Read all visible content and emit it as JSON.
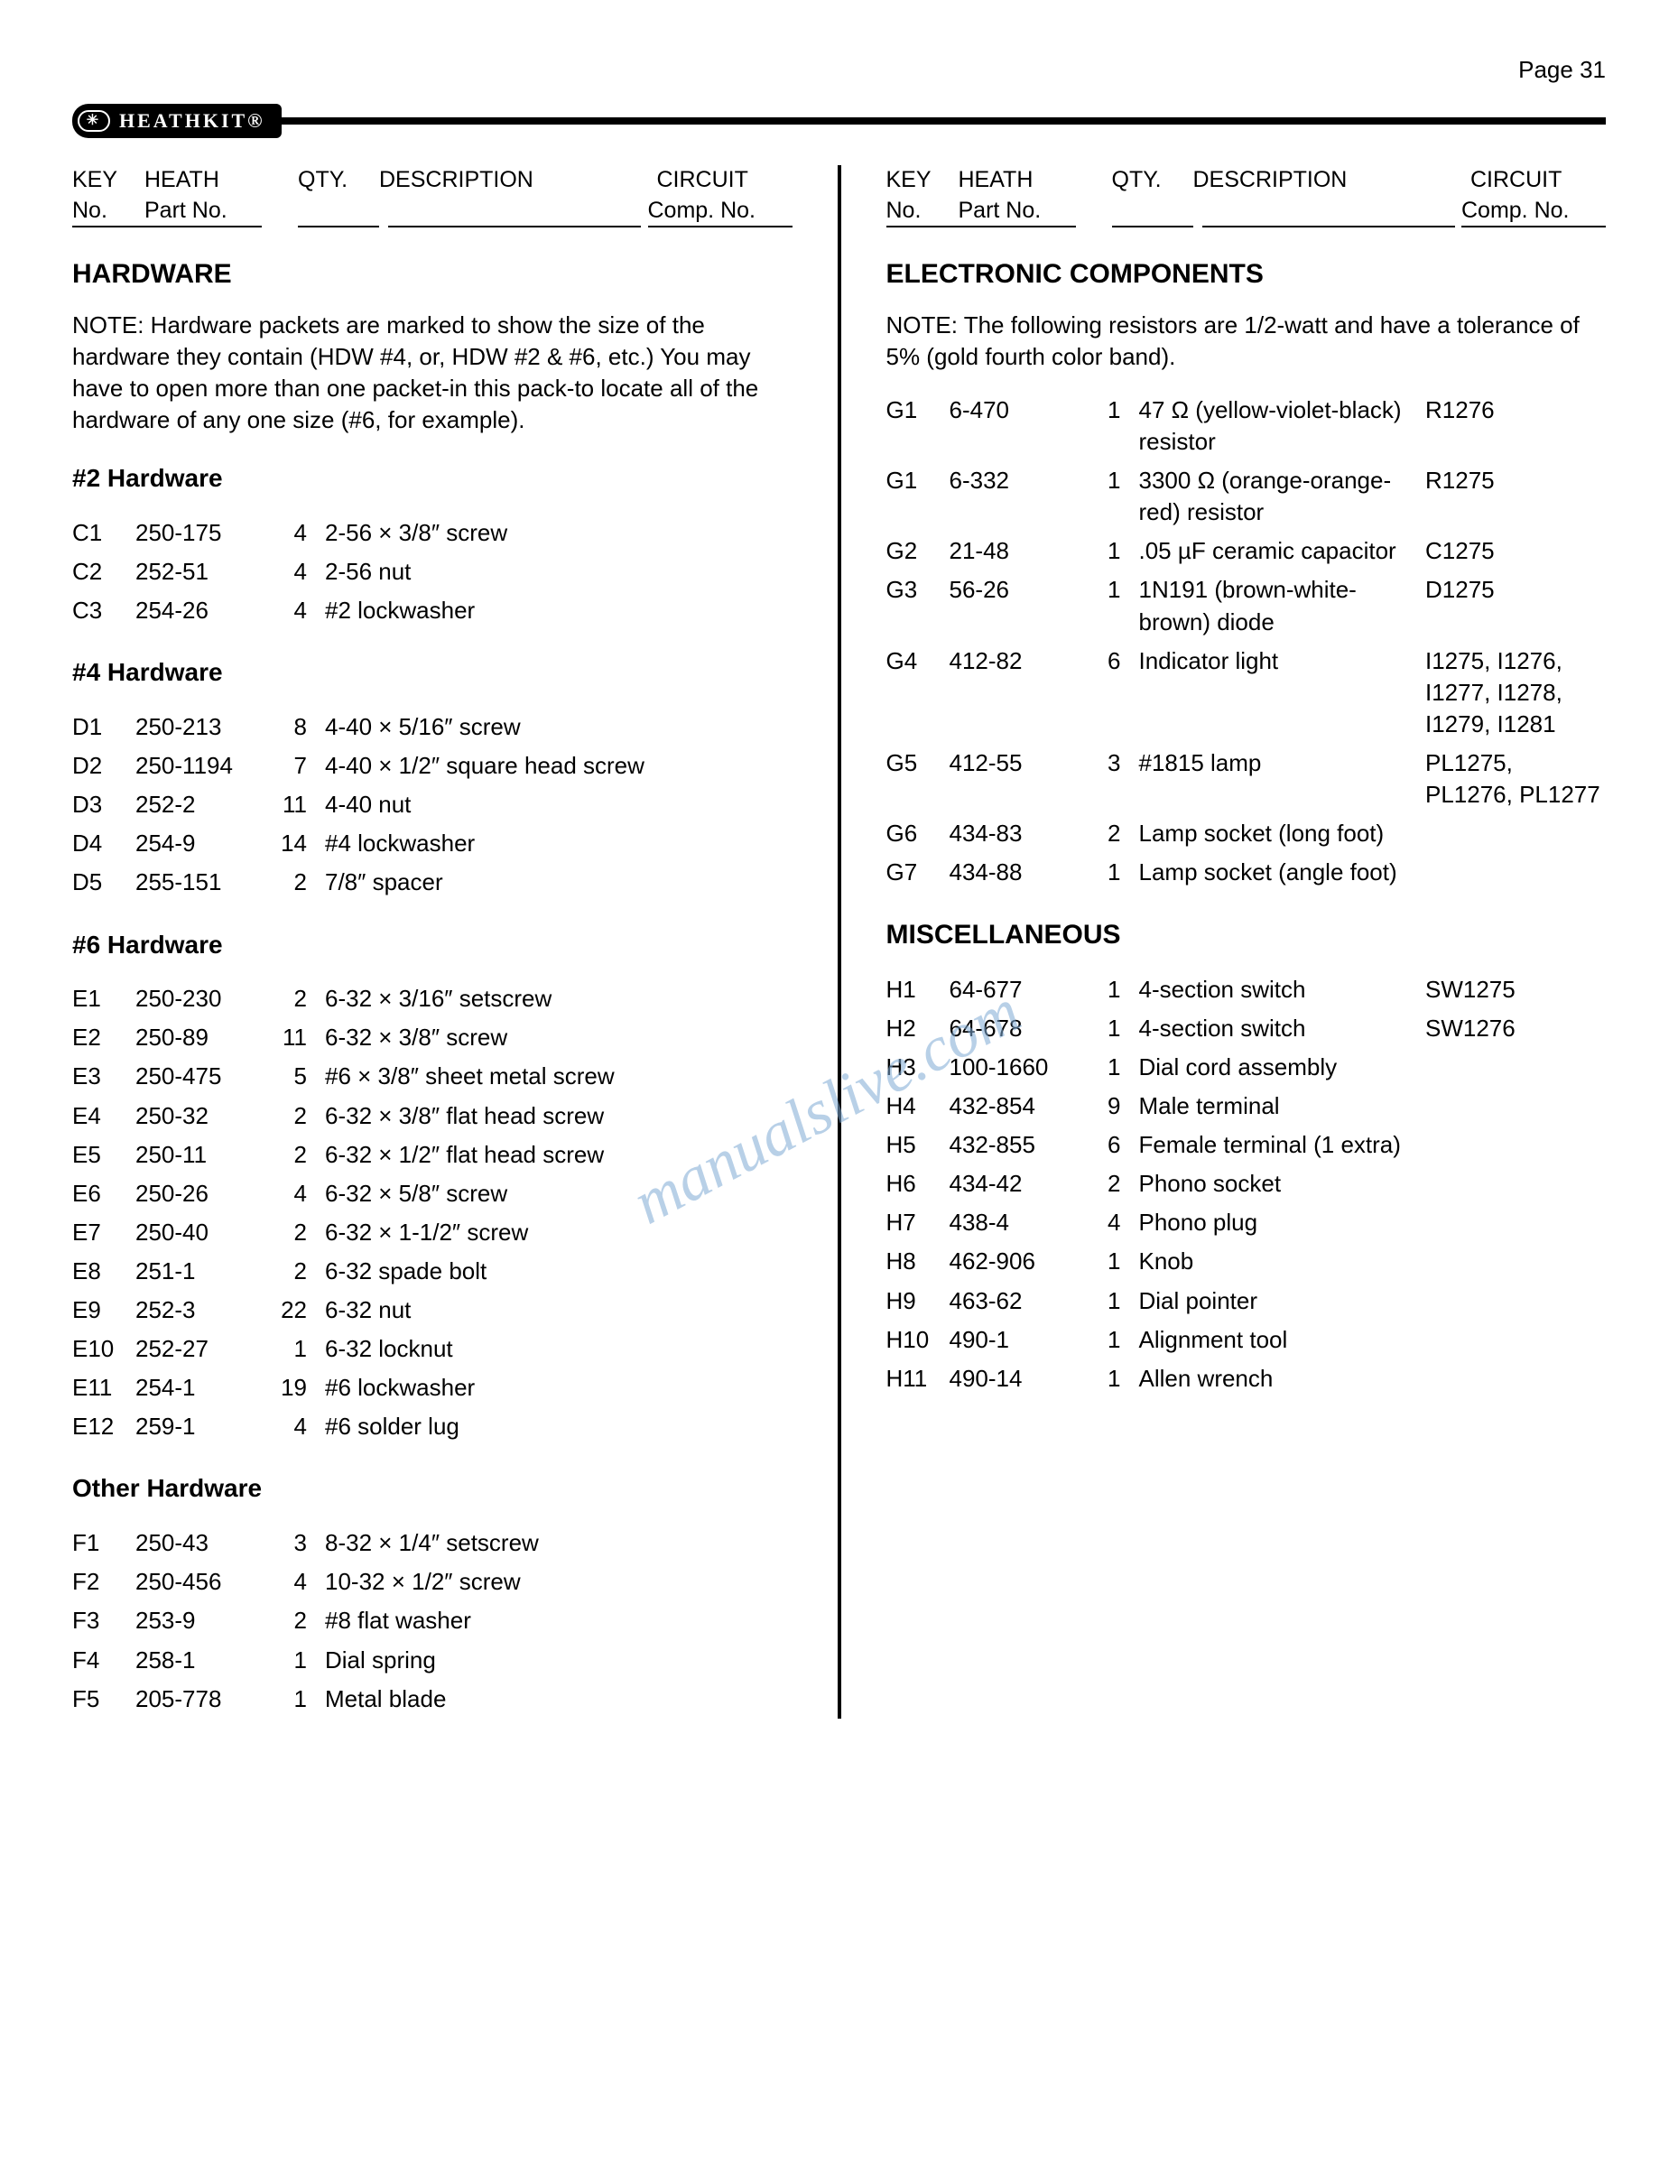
{
  "page_label": "Page 31",
  "logo_text": "HEATHKIT®",
  "watermark": "manualslive.com",
  "header": {
    "l1_key": "KEY",
    "l1_heath": "HEATH",
    "l1_qty": "QTY.",
    "l1_desc": "DESCRIPTION",
    "l1_circ": "CIRCUIT",
    "l2_no": "No.",
    "l2_part": "Part No.",
    "l2_comp": "Comp. No."
  },
  "left": {
    "hardware_title": "HARDWARE",
    "hardware_note": "NOTE: Hardware packets are marked to show the size of the hardware they contain (HDW #4, or, HDW #2 & #6, etc.) You may have to open more than one packet-in this pack-to locate all of the hardware of any one size (#6, for example).",
    "h2_title": "#2 Hardware",
    "h2_rows": [
      {
        "k": "C1",
        "p": "250-175",
        "q": "4",
        "d": "2-56 × 3/8″ screw"
      },
      {
        "k": "C2",
        "p": "252-51",
        "q": "4",
        "d": "2-56 nut"
      },
      {
        "k": "C3",
        "p": "254-26",
        "q": "4",
        "d": "#2 lockwasher"
      }
    ],
    "h4_title": "#4 Hardware",
    "h4_rows": [
      {
        "k": "D1",
        "p": "250-213",
        "q": "8",
        "d": "4-40 × 5/16″ screw"
      },
      {
        "k": "D2",
        "p": "250-1194",
        "q": "7",
        "d": "4-40 × 1/2″ square head screw"
      },
      {
        "k": "D3",
        "p": "252-2",
        "q": "11",
        "d": "4-40 nut"
      },
      {
        "k": "D4",
        "p": "254-9",
        "q": "14",
        "d": "#4 lockwasher"
      },
      {
        "k": "D5",
        "p": "255-151",
        "q": "2",
        "d": "7/8″ spacer"
      }
    ],
    "h6_title": "#6 Hardware",
    "h6_rows": [
      {
        "k": "E1",
        "p": "250-230",
        "q": "2",
        "d": "6-32 × 3/16″ setscrew"
      },
      {
        "k": "E2",
        "p": "250-89",
        "q": "11",
        "d": "6-32 × 3/8″ screw"
      },
      {
        "k": "E3",
        "p": "250-475",
        "q": "5",
        "d": "#6 × 3/8″ sheet metal screw"
      },
      {
        "k": "E4",
        "p": "250-32",
        "q": "2",
        "d": "6-32 × 3/8″ flat head screw"
      },
      {
        "k": "E5",
        "p": "250-11",
        "q": "2",
        "d": "6-32 × 1/2″ flat head screw"
      },
      {
        "k": "E6",
        "p": "250-26",
        "q": "4",
        "d": "6-32 × 5/8″ screw"
      },
      {
        "k": "E7",
        "p": "250-40",
        "q": "2",
        "d": "6-32 × 1-1/2″ screw"
      },
      {
        "k": "E8",
        "p": "251-1",
        "q": "2",
        "d": "6-32 spade bolt"
      },
      {
        "k": "E9",
        "p": "252-3",
        "q": "22",
        "d": "6-32 nut"
      },
      {
        "k": "E10",
        "p": "252-27",
        "q": "1",
        "d": "6-32 locknut"
      },
      {
        "k": "E11",
        "p": "254-1",
        "q": "19",
        "d": "#6 lockwasher"
      },
      {
        "k": "E12",
        "p": "259-1",
        "q": "4",
        "d": "#6 solder lug"
      }
    ],
    "other_title": "Other Hardware",
    "other_rows": [
      {
        "k": "F1",
        "p": "250-43",
        "q": "3",
        "d": "8-32 × 1/4″ setscrew"
      },
      {
        "k": "F2",
        "p": "250-456",
        "q": "4",
        "d": "10-32 × 1/2″ screw"
      },
      {
        "k": "F3",
        "p": "253-9",
        "q": "2",
        "d": "#8 flat washer"
      },
      {
        "k": "F4",
        "p": "258-1",
        "q": "1",
        "d": "Dial spring"
      },
      {
        "k": "F5",
        "p": "205-778",
        "q": "1",
        "d": "Metal blade"
      }
    ]
  },
  "right": {
    "elec_title": "ELECTRONIC COMPONENTS",
    "elec_note": "NOTE: The following resistors are 1/2-watt and have a tolerance of 5% (gold fourth color band).",
    "elec_rows": [
      {
        "k": "G1",
        "p": "6-470",
        "q": "1",
        "d": "47 Ω (yellow-violet-black) resistor",
        "c": "R1276"
      },
      {
        "k": "G1",
        "p": "6-332",
        "q": "1",
        "d": "3300 Ω (orange-orange-red) resistor",
        "c": "R1275"
      },
      {
        "k": "G2",
        "p": "21-48",
        "q": "1",
        "d": ".05 µF ceramic capacitor",
        "c": "C1275"
      },
      {
        "k": "G3",
        "p": "56-26",
        "q": "1",
        "d": "1N191 (brown-white-brown) diode",
        "c": "D1275"
      },
      {
        "k": "G4",
        "p": "412-82",
        "q": "6",
        "d": "Indicator light",
        "c": "I1275, I1276, I1277, I1278, I1279, I1281"
      },
      {
        "k": "G5",
        "p": "412-55",
        "q": "3",
        "d": "#1815 lamp",
        "c": "PL1275, PL1276, PL1277"
      },
      {
        "k": "G6",
        "p": "434-83",
        "q": "2",
        "d": "Lamp socket (long foot)",
        "c": ""
      },
      {
        "k": "G7",
        "p": "434-88",
        "q": "1",
        "d": "Lamp socket (angle foot)",
        "c": ""
      }
    ],
    "misc_title": "MISCELLANEOUS",
    "misc_rows": [
      {
        "k": "H1",
        "p": "64-677",
        "q": "1",
        "d": "4-section switch",
        "c": "SW1275"
      },
      {
        "k": "H2",
        "p": "64-678",
        "q": "1",
        "d": "4-section switch",
        "c": "SW1276"
      },
      {
        "k": "H3",
        "p": "100-1660",
        "q": "1",
        "d": "Dial cord assembly",
        "c": ""
      },
      {
        "k": "H4",
        "p": "432-854",
        "q": "9",
        "d": "Male terminal",
        "c": ""
      },
      {
        "k": "H5",
        "p": "432-855",
        "q": "6",
        "d": "Female terminal (1 extra)",
        "c": ""
      },
      {
        "k": "H6",
        "p": "434-42",
        "q": "2",
        "d": "Phono socket",
        "c": ""
      },
      {
        "k": "H7",
        "p": "438-4",
        "q": "4",
        "d": "Phono plug",
        "c": ""
      },
      {
        "k": "H8",
        "p": "462-906",
        "q": "1",
        "d": "Knob",
        "c": ""
      },
      {
        "k": "H9",
        "p": "463-62",
        "q": "1",
        "d": "Dial pointer",
        "c": ""
      },
      {
        "k": "H10",
        "p": "490-1",
        "q": "1",
        "d": "Alignment tool",
        "c": ""
      },
      {
        "k": "H11",
        "p": "490-14",
        "q": "1",
        "d": "Allen wrench",
        "c": ""
      }
    ]
  }
}
